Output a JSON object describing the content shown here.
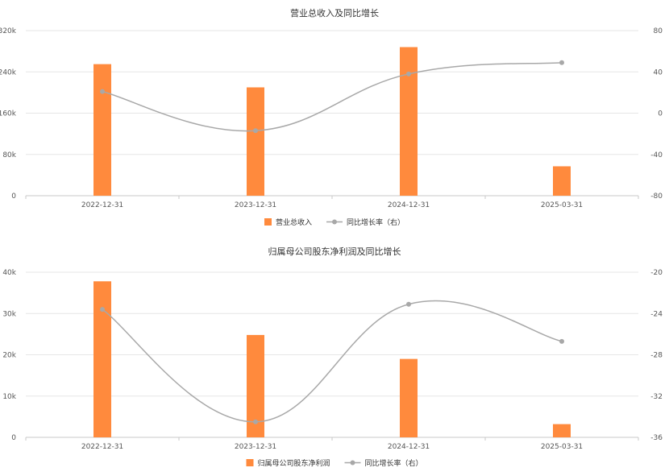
{
  "colors": {
    "bar": "#ff8a3d",
    "line": "#a8a8a8",
    "grid": "#e6e6e6",
    "axis": "#c8c8c8"
  },
  "chart_data": [
    {
      "type": "bar",
      "title": "营业总收入及同比增长",
      "categories": [
        "2022-12-31",
        "2023-12-31",
        "2024-12-31",
        "2025-03-31"
      ],
      "series": [
        {
          "name": "营业总收入",
          "type": "bar",
          "axis": "left",
          "values": [
            255000,
            210000,
            288000,
            57000
          ]
        },
        {
          "name": "同比增长率（右）",
          "type": "line",
          "axis": "right",
          "values": [
            21,
            -17,
            38,
            49
          ]
        }
      ],
      "y_left": {
        "min": 0,
        "max": 320000,
        "ticks": [
          0,
          80000,
          160000,
          240000,
          320000
        ],
        "tick_labels": [
          "0",
          "80k",
          "160k",
          "240k",
          "320k"
        ]
      },
      "y_right": {
        "min": -80,
        "max": 80,
        "ticks": [
          -80,
          -40,
          0,
          40,
          80
        ],
        "tick_labels": [
          "-80",
          "-40",
          "0",
          "40",
          "80"
        ]
      },
      "legend_position": "bottom-center",
      "grid": true
    },
    {
      "type": "bar",
      "title": "归属母公司股东净利润及同比增长",
      "categories": [
        "2022-12-31",
        "2023-12-31",
        "2024-12-31",
        "2025-03-31"
      ],
      "series": [
        {
          "name": "归属母公司股东净利润",
          "type": "bar",
          "axis": "left",
          "values": [
            37800,
            24800,
            19000,
            3200
          ]
        },
        {
          "name": "同比增长率（右）",
          "type": "line",
          "axis": "right",
          "values": [
            -23.6,
            -34.5,
            -23.1,
            -26.7
          ]
        }
      ],
      "y_left": {
        "min": 0,
        "max": 40000,
        "ticks": [
          0,
          10000,
          20000,
          30000,
          40000
        ],
        "tick_labels": [
          "0",
          "10k",
          "20k",
          "30k",
          "40k"
        ]
      },
      "y_right": {
        "min": -36,
        "max": -20,
        "ticks": [
          -36,
          -32,
          -28,
          -24,
          -20
        ],
        "tick_labels": [
          "-36",
          "-32",
          "-28",
          "-24",
          "-20"
        ]
      },
      "legend_position": "bottom-center",
      "grid": true
    }
  ]
}
